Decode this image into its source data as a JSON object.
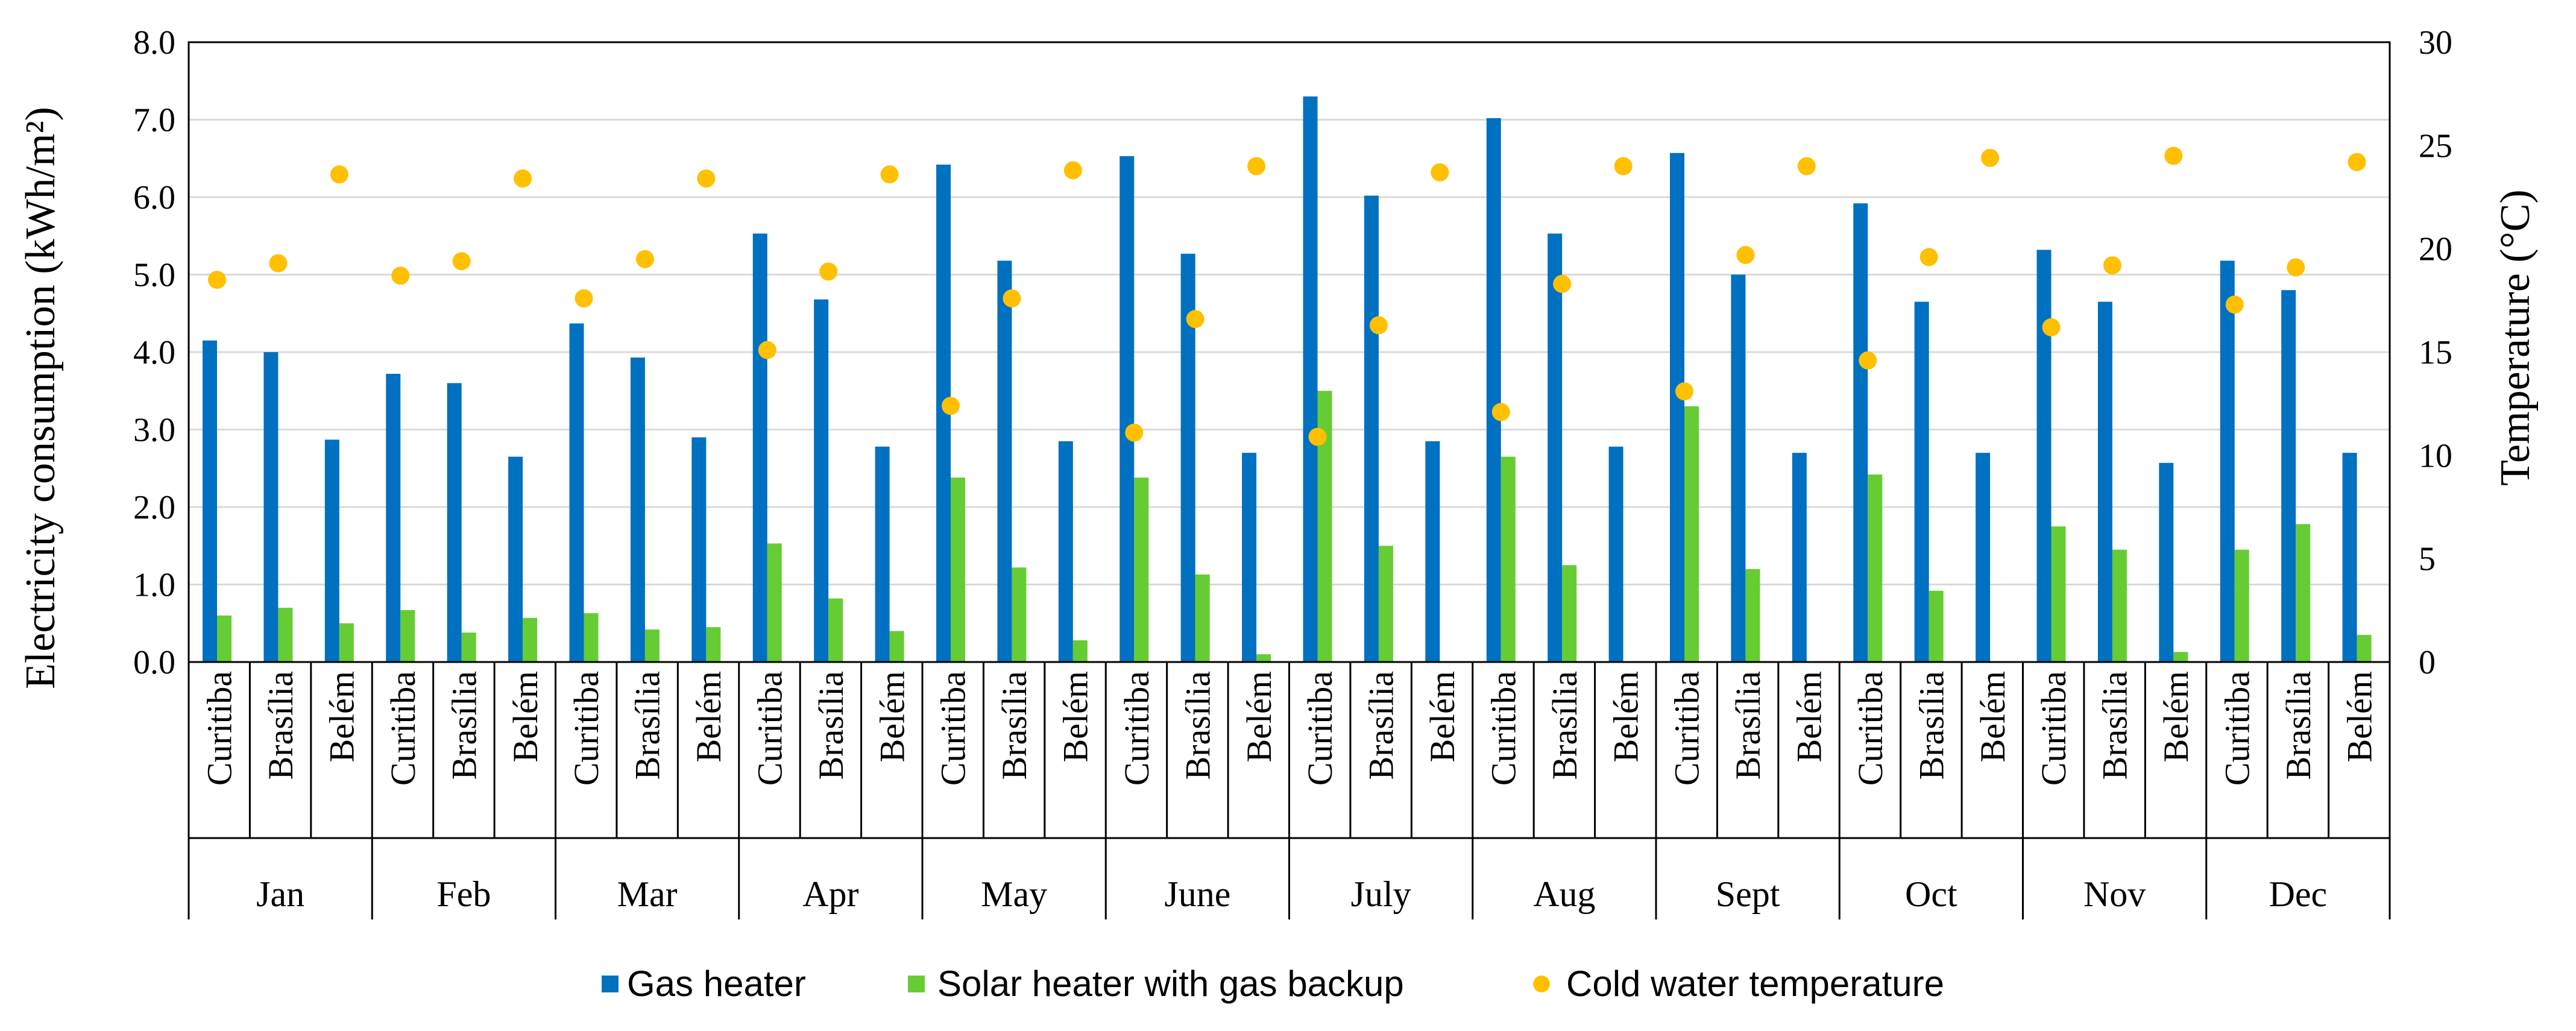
{
  "chart_data": {
    "type": "bar",
    "title": "",
    "ylabel": "Electricity consumption (kWh/m²)",
    "y2label": "Temperature (°C)",
    "ylim": [
      0,
      8
    ],
    "y2lim": [
      0,
      30
    ],
    "yticks": [
      "0.0",
      "1.0",
      "2.0",
      "3.0",
      "4.0",
      "5.0",
      "6.0",
      "7.0",
      "8.0"
    ],
    "y2ticks": [
      "0",
      "5",
      "10",
      "15",
      "20",
      "25",
      "30"
    ],
    "y2tick_values": [
      0,
      5,
      10,
      15,
      20,
      25,
      30
    ],
    "months": [
      "Jan",
      "Feb",
      "Mar",
      "Apr",
      "May",
      "June",
      "July",
      "Aug",
      "Sept",
      "Oct",
      "Nov",
      "Dec"
    ],
    "cities": [
      "Curitiba",
      "Brasília",
      "Belém"
    ],
    "series": [
      {
        "name": "Gas heater",
        "color": "#0070C0",
        "values": [
          [
            4.15,
            4.0,
            2.87
          ],
          [
            3.72,
            3.6,
            2.65
          ],
          [
            4.37,
            3.93,
            2.9
          ],
          [
            5.53,
            4.68,
            2.78
          ],
          [
            6.42,
            5.18,
            2.85
          ],
          [
            6.53,
            5.27,
            2.7
          ],
          [
            7.3,
            6.02,
            2.85
          ],
          [
            7.02,
            5.53,
            2.78
          ],
          [
            6.57,
            5.0,
            2.7
          ],
          [
            5.92,
            4.65,
            2.7
          ],
          [
            5.32,
            4.65,
            2.57
          ],
          [
            5.18,
            4.8,
            2.7
          ]
        ]
      },
      {
        "name": "Solar heater with gas backup",
        "color": "#66CC33",
        "values": [
          [
            0.6,
            0.7,
            0.5
          ],
          [
            0.67,
            0.38,
            0.57
          ],
          [
            0.63,
            0.42,
            0.45
          ],
          [
            1.53,
            0.82,
            0.4
          ],
          [
            2.38,
            1.22,
            0.28
          ],
          [
            2.38,
            1.13,
            0.1
          ],
          [
            3.5,
            1.5,
            0.0
          ],
          [
            2.65,
            1.25,
            0.0
          ],
          [
            3.3,
            1.2,
            0.0
          ],
          [
            2.42,
            0.92,
            0.0
          ],
          [
            1.75,
            1.45,
            0.13
          ],
          [
            1.45,
            1.78,
            0.35
          ]
        ]
      },
      {
        "name": "Cold water temperature",
        "color": "#FFC000",
        "axis": "right",
        "type": "scatter",
        "values": [
          [
            18.5,
            19.3,
            23.6
          ],
          [
            18.7,
            19.4,
            23.4
          ],
          [
            17.6,
            19.5,
            23.4
          ],
          [
            15.1,
            18.9,
            23.6
          ],
          [
            12.4,
            17.6,
            23.8
          ],
          [
            11.1,
            16.6,
            24.0
          ],
          [
            10.9,
            16.3,
            23.7
          ],
          [
            12.1,
            18.3,
            24.0
          ],
          [
            13.1,
            19.7,
            24.0
          ],
          [
            14.6,
            19.6,
            24.4
          ],
          [
            16.2,
            19.2,
            24.5
          ],
          [
            17.3,
            19.1,
            24.2
          ]
        ]
      }
    ],
    "legend_position": "bottom"
  }
}
